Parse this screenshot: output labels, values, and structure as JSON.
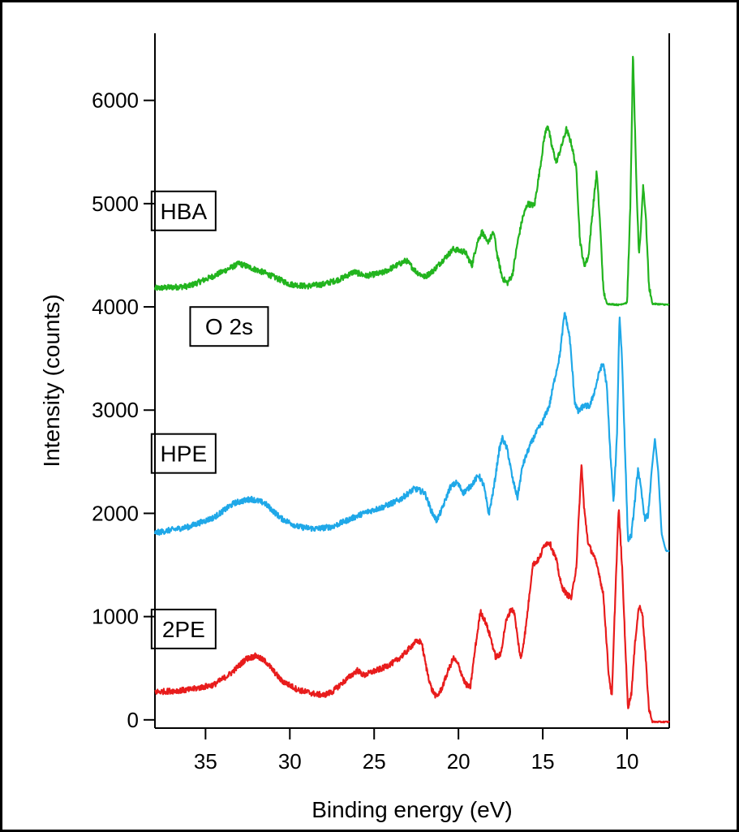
{
  "chart_data": {
    "type": "line",
    "xlabel": "Binding energy (eV)",
    "ylabel": "Intensity (counts)",
    "xlim": [
      38,
      7.5
    ],
    "x_reversed": true,
    "ylim": [
      -80,
      6650
    ],
    "grid": false,
    "xticks": [
      35,
      30,
      25,
      20,
      15,
      10
    ],
    "yticks": [
      0,
      1000,
      2000,
      3000,
      4000,
      5000,
      6000
    ],
    "series": [
      {
        "name": "HBA",
        "color": "#22b41e",
        "points": [
          [
            38,
            4180
          ],
          [
            36,
            4200
          ],
          [
            34.5,
            4300
          ],
          [
            33,
            4420
          ],
          [
            31.5,
            4330
          ],
          [
            30,
            4220
          ],
          [
            29,
            4200
          ],
          [
            28,
            4220
          ],
          [
            27,
            4270
          ],
          [
            26.2,
            4340
          ],
          [
            25.5,
            4300
          ],
          [
            24.5,
            4330
          ],
          [
            23.1,
            4450
          ],
          [
            22.5,
            4340
          ],
          [
            22,
            4290
          ],
          [
            21.5,
            4350
          ],
          [
            21,
            4440
          ],
          [
            20.3,
            4560
          ],
          [
            19.6,
            4530
          ],
          [
            19.2,
            4400
          ],
          [
            18.9,
            4620
          ],
          [
            18.6,
            4730
          ],
          [
            18.3,
            4620
          ],
          [
            17.9,
            4720
          ],
          [
            17.7,
            4500
          ],
          [
            17.4,
            4280
          ],
          [
            17.1,
            4230
          ],
          [
            16.8,
            4310
          ],
          [
            16.5,
            4620
          ],
          [
            16.2,
            4860
          ],
          [
            15.9,
            5000
          ],
          [
            15.5,
            4980
          ],
          [
            15.2,
            5300
          ],
          [
            14.9,
            5650
          ],
          [
            14.7,
            5770
          ],
          [
            14.5,
            5580
          ],
          [
            14.2,
            5400
          ],
          [
            13.9,
            5550
          ],
          [
            13.6,
            5720
          ],
          [
            13.3,
            5580
          ],
          [
            13.0,
            5320
          ],
          [
            12.8,
            4650
          ],
          [
            12.55,
            4400
          ],
          [
            12.3,
            4480
          ],
          [
            12.0,
            5000
          ],
          [
            11.8,
            5310
          ],
          [
            11.6,
            4800
          ],
          [
            11.4,
            4150
          ],
          [
            11.2,
            4030
          ],
          [
            10.5,
            4020
          ],
          [
            10.0,
            4040
          ],
          [
            9.8,
            5000
          ],
          [
            9.65,
            6470
          ],
          [
            9.45,
            5200
          ],
          [
            9.3,
            4520
          ],
          [
            9.2,
            4700
          ],
          [
            9.05,
            5180
          ],
          [
            8.9,
            4900
          ],
          [
            8.7,
            4200
          ],
          [
            8.5,
            4030
          ],
          [
            7.5,
            4020
          ]
        ]
      },
      {
        "name": "HPE",
        "color": "#1fa8e8",
        "points": [
          [
            38,
            1810
          ],
          [
            36,
            1870
          ],
          [
            34.5,
            1960
          ],
          [
            33.3,
            2100
          ],
          [
            32.3,
            2140
          ],
          [
            31.5,
            2100
          ],
          [
            30.5,
            1950
          ],
          [
            29.5,
            1870
          ],
          [
            28.5,
            1850
          ],
          [
            27.5,
            1870
          ],
          [
            26.5,
            1940
          ],
          [
            25.5,
            2010
          ],
          [
            24.5,
            2060
          ],
          [
            23.5,
            2130
          ],
          [
            22.6,
            2240
          ],
          [
            22.0,
            2200
          ],
          [
            21.6,
            2020
          ],
          [
            21.3,
            1930
          ],
          [
            21.0,
            2030
          ],
          [
            20.5,
            2250
          ],
          [
            20.1,
            2300
          ],
          [
            19.7,
            2200
          ],
          [
            19.3,
            2260
          ],
          [
            18.8,
            2370
          ],
          [
            18.5,
            2270
          ],
          [
            18.2,
            1990
          ],
          [
            17.9,
            2250
          ],
          [
            17.6,
            2600
          ],
          [
            17.4,
            2730
          ],
          [
            17.1,
            2620
          ],
          [
            16.8,
            2340
          ],
          [
            16.5,
            2150
          ],
          [
            16.2,
            2460
          ],
          [
            15.8,
            2640
          ],
          [
            15.4,
            2780
          ],
          [
            15.0,
            2890
          ],
          [
            14.6,
            3050
          ],
          [
            14.3,
            3300
          ],
          [
            14.0,
            3520
          ],
          [
            13.7,
            3950
          ],
          [
            13.4,
            3700
          ],
          [
            13.1,
            3080
          ],
          [
            12.9,
            2980
          ],
          [
            12.6,
            3040
          ],
          [
            12.2,
            3040
          ],
          [
            11.9,
            3200
          ],
          [
            11.6,
            3400
          ],
          [
            11.4,
            3450
          ],
          [
            11.2,
            3220
          ],
          [
            11.0,
            2600
          ],
          [
            10.8,
            2100
          ],
          [
            10.6,
            2750
          ],
          [
            10.45,
            3930
          ],
          [
            10.3,
            3500
          ],
          [
            10.1,
            2500
          ],
          [
            9.95,
            1750
          ],
          [
            9.75,
            1780
          ],
          [
            9.55,
            2100
          ],
          [
            9.35,
            2440
          ],
          [
            9.15,
            2200
          ],
          [
            8.95,
            1950
          ],
          [
            8.75,
            1980
          ],
          [
            8.55,
            2400
          ],
          [
            8.35,
            2720
          ],
          [
            8.15,
            2400
          ],
          [
            7.95,
            1800
          ],
          [
            7.7,
            1640
          ],
          [
            7.5,
            1630
          ]
        ]
      },
      {
        "name": "2PE",
        "color": "#e81c1c",
        "points": [
          [
            38,
            270
          ],
          [
            36,
            290
          ],
          [
            34.5,
            340
          ],
          [
            33.5,
            450
          ],
          [
            32.6,
            590
          ],
          [
            32.0,
            620
          ],
          [
            31.4,
            560
          ],
          [
            30.5,
            380
          ],
          [
            29.5,
            290
          ],
          [
            28.5,
            250
          ],
          [
            28.0,
            240
          ],
          [
            27.5,
            270
          ],
          [
            26.8,
            370
          ],
          [
            26.0,
            480
          ],
          [
            25.6,
            430
          ],
          [
            25.2,
            460
          ],
          [
            24.5,
            500
          ],
          [
            23.8,
            560
          ],
          [
            23.2,
            640
          ],
          [
            22.6,
            750
          ],
          [
            22.2,
            760
          ],
          [
            21.9,
            500
          ],
          [
            21.6,
            300
          ],
          [
            21.3,
            220
          ],
          [
            21.0,
            300
          ],
          [
            20.6,
            480
          ],
          [
            20.3,
            600
          ],
          [
            20.0,
            530
          ],
          [
            19.6,
            350
          ],
          [
            19.3,
            310
          ],
          [
            19.0,
            700
          ],
          [
            18.7,
            1050
          ],
          [
            18.4,
            950
          ],
          [
            18.1,
            800
          ],
          [
            17.8,
            610
          ],
          [
            17.5,
            630
          ],
          [
            17.2,
            940
          ],
          [
            16.9,
            1070
          ],
          [
            16.7,
            1050
          ],
          [
            16.5,
            800
          ],
          [
            16.3,
            580
          ],
          [
            16.0,
            900
          ],
          [
            15.6,
            1500
          ],
          [
            15.2,
            1560
          ],
          [
            14.9,
            1700
          ],
          [
            14.6,
            1720
          ],
          [
            14.2,
            1550
          ],
          [
            13.9,
            1300
          ],
          [
            13.6,
            1220
          ],
          [
            13.3,
            1180
          ],
          [
            13.0,
            1500
          ],
          [
            12.8,
            2180
          ],
          [
            12.7,
            2480
          ],
          [
            12.55,
            2050
          ],
          [
            12.3,
            1700
          ],
          [
            12.0,
            1600
          ],
          [
            11.7,
            1450
          ],
          [
            11.4,
            1200
          ],
          [
            11.1,
            460
          ],
          [
            10.9,
            220
          ],
          [
            10.7,
            1200
          ],
          [
            10.5,
            2050
          ],
          [
            10.3,
            1500
          ],
          [
            10.1,
            700
          ],
          [
            9.95,
            120
          ],
          [
            9.75,
            250
          ],
          [
            9.5,
            800
          ],
          [
            9.3,
            1100
          ],
          [
            9.1,
            1050
          ],
          [
            8.9,
            600
          ],
          [
            8.7,
            100
          ],
          [
            8.5,
            -20
          ],
          [
            7.5,
            -20
          ]
        ]
      }
    ],
    "annotations": [
      {
        "text": "HBA",
        "x": 36.3,
        "y": 4930
      },
      {
        "text": "O 2s",
        "x": 33.6,
        "y": 3810
      },
      {
        "text": "HPE",
        "x": 36.3,
        "y": 2580
      },
      {
        "text": "2PE",
        "x": 36.3,
        "y": 880
      }
    ]
  }
}
